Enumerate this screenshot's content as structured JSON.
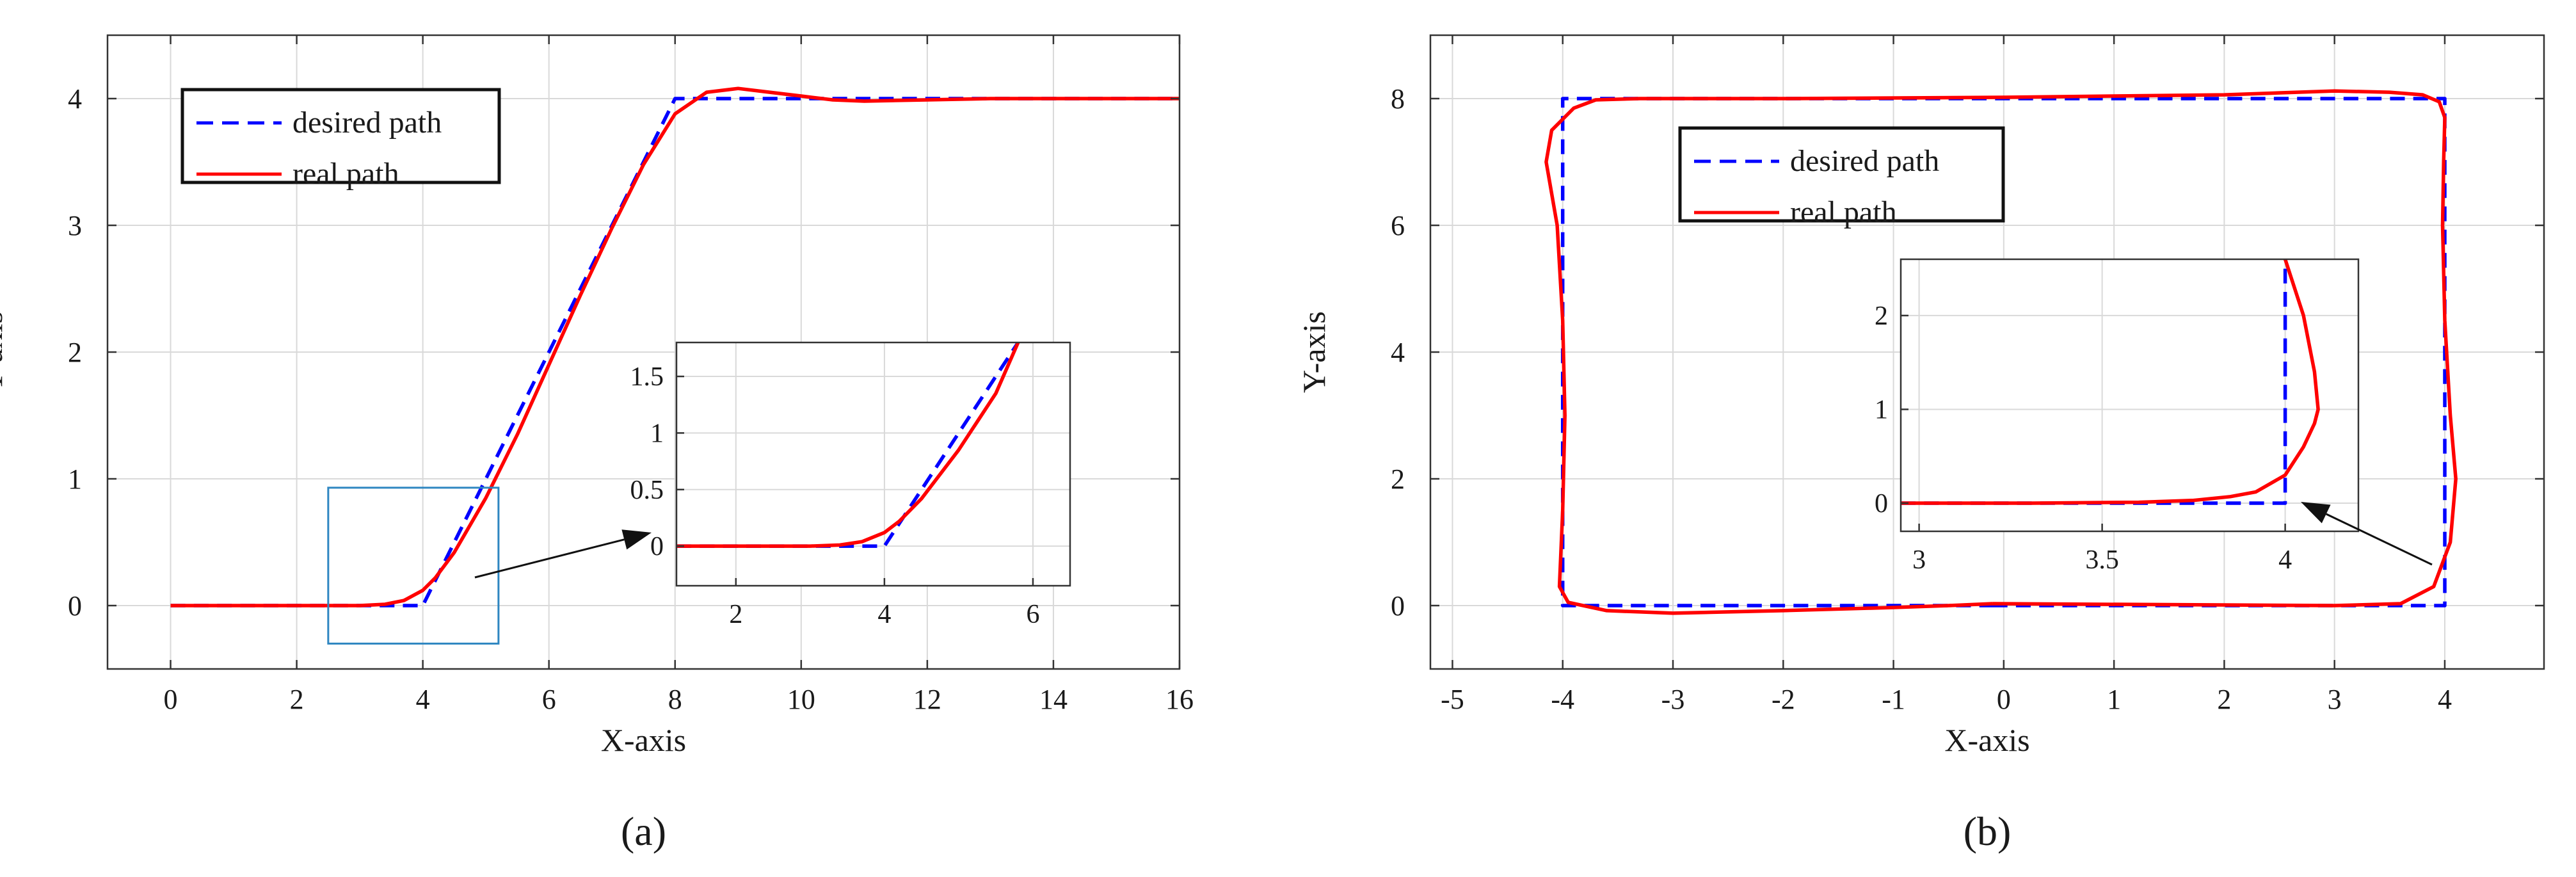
{
  "colors": {
    "desired": "#0000ff",
    "real": "#ff0000",
    "grid": "#d9d9d9",
    "axes": "#333333",
    "zoom_box": "#2e86c1"
  },
  "chart_data": [
    {
      "type": "line",
      "panel_label": "(a)",
      "xlabel": "X-axis",
      "ylabel": "Y-axis",
      "xlim": [
        -1,
        16
      ],
      "ylim": [
        -0.5,
        4.5
      ],
      "xticks": [
        0,
        2,
        4,
        6,
        8,
        10,
        12,
        14,
        16
      ],
      "yticks": [
        0,
        1,
        2,
        3,
        4
      ],
      "grid": true,
      "legend_position": "top-left",
      "series": [
        {
          "name": "desired path",
          "style": "dashed",
          "x": [
            0,
            4,
            8,
            16
          ],
          "y": [
            0,
            0,
            4,
            4
          ]
        },
        {
          "name": "real path",
          "style": "solid",
          "x": [
            0,
            3.0,
            3.4,
            3.7,
            4.0,
            4.2,
            4.5,
            5.0,
            5.5,
            6.0,
            6.5,
            7.0,
            7.5,
            8.0,
            8.5,
            9.0,
            9.5,
            10.0,
            10.5,
            11.0,
            12.0,
            13.0,
            14.0,
            16.0
          ],
          "y": [
            0,
            0,
            0.01,
            0.04,
            0.12,
            0.22,
            0.42,
            0.85,
            1.35,
            1.9,
            2.45,
            2.98,
            3.48,
            3.88,
            4.05,
            4.08,
            4.05,
            4.02,
            3.99,
            3.98,
            3.99,
            4.0,
            4.0,
            4.0
          ]
        }
      ],
      "zoom_region": {
        "x": [
          2.5,
          5.2
        ],
        "y": [
          -0.3,
          0.93
        ]
      },
      "inset": {
        "xlim": [
          1.2,
          6.5
        ],
        "ylim": [
          -0.35,
          1.8
        ],
        "xticks": [
          2,
          4,
          6
        ],
        "yticks": [
          0,
          0.5,
          1,
          1.5
        ],
        "xtick_labels": [
          "2",
          "4",
          "6"
        ],
        "ytick_labels": [
          "0",
          "0.5",
          "1",
          "1.5"
        ],
        "series": [
          {
            "name": "desired path",
            "style": "dashed",
            "x": [
              1.2,
              4.0,
              5.8
            ],
            "y": [
              0,
              0,
              1.8
            ]
          },
          {
            "name": "real path",
            "style": "solid",
            "x": [
              1.2,
              3.0,
              3.4,
              3.7,
              4.0,
              4.2,
              4.5,
              5.0,
              5.5,
              5.8
            ],
            "y": [
              0,
              0,
              0.01,
              0.04,
              0.12,
              0.22,
              0.42,
              0.85,
              1.35,
              1.8
            ]
          }
        ]
      }
    },
    {
      "type": "line",
      "panel_label": "(b)",
      "xlabel": "X-axis",
      "ylabel": "Y-axis",
      "xlim": [
        -5.2,
        4.9
      ],
      "ylim": [
        -1,
        9
      ],
      "xticks": [
        -5,
        -4,
        -3,
        -2,
        -1,
        0,
        1,
        2,
        3,
        4
      ],
      "yticks": [
        0,
        2,
        4,
        6,
        8
      ],
      "grid": true,
      "legend_position": "top-center",
      "series": [
        {
          "name": "desired path",
          "style": "dashed",
          "x": [
            -0.1,
            4.0,
            4.0,
            -4.0,
            -4.0,
            -0.1
          ],
          "y": [
            0,
            0,
            8,
            8,
            0,
            0
          ]
        },
        {
          "name": "real path",
          "style": "solid",
          "x": [
            -0.1,
            3.0,
            3.6,
            3.9,
            4.05,
            4.1,
            4.05,
            4.0,
            3.98,
            3.99,
            4.0,
            3.95,
            3.8,
            3.5,
            3.0,
            2.0,
            0.0,
            -2.0,
            -3.3,
            -3.7,
            -3.9,
            -4.1,
            -4.15,
            -4.05,
            -4.0,
            -3.98,
            -4.0,
            -4.03,
            -3.95,
            -3.6,
            -3.0,
            -2.0,
            -1.0,
            -0.5,
            -0.1
          ],
          "y": [
            0.03,
            0.0,
            0.03,
            0.3,
            1.0,
            2.0,
            3.0,
            4.5,
            6.0,
            7.0,
            7.7,
            7.95,
            8.06,
            8.1,
            8.12,
            8.06,
            8.02,
            8.0,
            8.0,
            7.98,
            7.85,
            7.5,
            7.0,
            6.0,
            4.5,
            3.0,
            1.5,
            0.3,
            0.05,
            -0.08,
            -0.12,
            -0.08,
            -0.03,
            0.0,
            0.03
          ]
        }
      ],
      "inset": {
        "xlim": [
          2.95,
          4.2
        ],
        "ylim": [
          -0.3,
          2.6
        ],
        "xticks": [
          3,
          3.5,
          4
        ],
        "yticks": [
          0,
          1,
          2
        ],
        "xtick_labels": [
          "3",
          "3.5",
          "4"
        ],
        "ytick_labels": [
          "0",
          "1",
          "2"
        ],
        "series": [
          {
            "name": "desired path",
            "style": "dashed",
            "x": [
              2.95,
              4.0,
              4.0
            ],
            "y": [
              0,
              0,
              2.6
            ]
          },
          {
            "name": "real path",
            "style": "solid",
            "x": [
              2.95,
              3.3,
              3.6,
              3.75,
              3.85,
              3.92,
              4.0,
              4.05,
              4.08,
              4.09,
              4.08,
              4.05,
              4.0
            ],
            "y": [
              0.0,
              0.0,
              0.01,
              0.03,
              0.07,
              0.12,
              0.3,
              0.6,
              0.85,
              1.0,
              1.4,
              2.0,
              2.6
            ]
          }
        ]
      }
    }
  ]
}
